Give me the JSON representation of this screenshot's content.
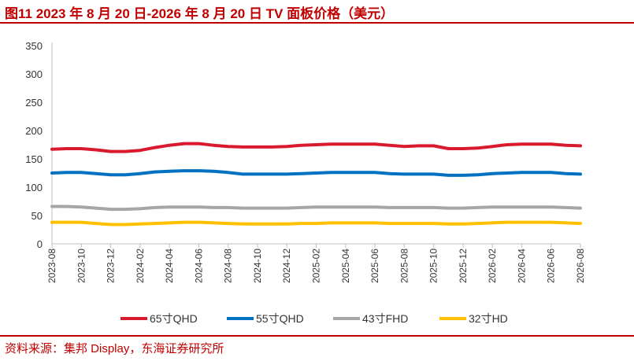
{
  "header": {
    "title": "图11  2023 年 8 月 20 日-2026 年 8 月 20 日 TV 面板价格（美元）"
  },
  "footer": {
    "source": "资料来源：集邦 Display，东海证券研究所"
  },
  "chart_data": {
    "type": "line",
    "title": "图11  2023 年 8 月 20 日-2026 年 8 月 20 日 TV 面板价格（美元）",
    "xlabel": "",
    "ylabel": "",
    "ylim": [
      0,
      350
    ],
    "yticks": [
      0,
      50,
      100,
      150,
      200,
      250,
      300,
      350
    ],
    "grid": false,
    "legend": "bottom",
    "x_tick_labels": [
      "2023-08",
      "2023-10",
      "2023-12",
      "2024-02",
      "2024-04",
      "2024-06",
      "2024-08",
      "2024-10",
      "2024-12",
      "2025-02",
      "2025-04",
      "2025-06",
      "2025-08",
      "2025-10",
      "2025-12",
      "2026-02",
      "2026-04",
      "2026-06",
      "2026-08"
    ],
    "x": [
      "2023-08",
      "2023-09",
      "2023-10",
      "2023-11",
      "2023-12",
      "2024-01",
      "2024-02",
      "2024-03",
      "2024-04",
      "2024-05",
      "2024-06",
      "2024-07",
      "2024-08",
      "2024-09",
      "2024-10",
      "2024-11",
      "2024-12",
      "2025-01",
      "2025-02",
      "2025-03",
      "2025-04",
      "2025-05",
      "2025-06",
      "2025-07",
      "2025-08",
      "2025-09",
      "2025-10",
      "2025-11",
      "2025-12",
      "2026-01",
      "2026-02",
      "2026-03",
      "2026-04",
      "2026-05",
      "2026-06",
      "2026-07",
      "2026-08"
    ],
    "series": [
      {
        "name": "65寸QHD",
        "color": "#d9192e",
        "values": [
          167,
          168,
          168,
          166,
          163,
          163,
          165,
          170,
          174,
          177,
          177,
          174,
          172,
          171,
          171,
          171,
          172,
          174,
          175,
          176,
          176,
          176,
          176,
          174,
          172,
          173,
          173,
          168,
          168,
          169,
          172,
          175,
          176,
          176,
          176,
          174,
          173
        ]
      },
      {
        "name": "55寸QHD",
        "color": "#0070c0",
        "values": [
          125,
          126,
          126,
          124,
          122,
          122,
          124,
          127,
          128,
          129,
          129,
          128,
          126,
          123,
          123,
          123,
          123,
          124,
          125,
          126,
          126,
          126,
          126,
          124,
          123,
          123,
          123,
          121,
          121,
          122,
          124,
          125,
          126,
          126,
          126,
          124,
          123
        ]
      },
      {
        "name": "43寸FHD",
        "color": "#a6a6a6",
        "values": [
          66,
          66,
          65,
          63,
          61,
          61,
          62,
          64,
          65,
          65,
          65,
          64,
          64,
          63,
          63,
          63,
          63,
          64,
          65,
          65,
          65,
          65,
          65,
          64,
          64,
          64,
          64,
          63,
          63,
          64,
          65,
          65,
          65,
          65,
          65,
          64,
          63
        ]
      },
      {
        "name": "32寸HD",
        "color": "#ffc000",
        "values": [
          38,
          38,
          38,
          36,
          34,
          34,
          35,
          36,
          37,
          38,
          38,
          37,
          36,
          35,
          35,
          35,
          35,
          36,
          36,
          37,
          37,
          37,
          37,
          36,
          36,
          36,
          36,
          35,
          35,
          36,
          37,
          38,
          38,
          38,
          38,
          37,
          36
        ]
      }
    ]
  }
}
